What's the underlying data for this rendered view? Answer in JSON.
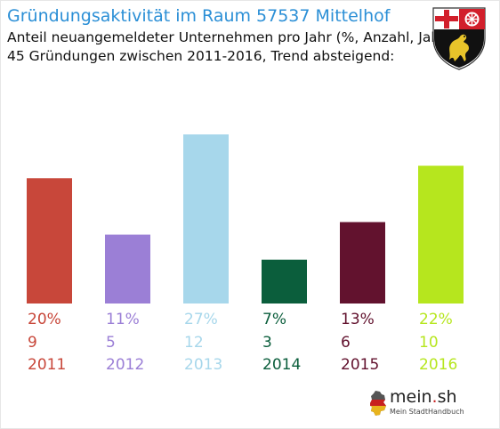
{
  "header": {
    "title": "Gründungsaktivität im Raum 57537 Mittelhof",
    "subtitle_line1": "Anteil neuangemeldeter Unternehmen pro Jahr (%, Anzahl, Jahr)",
    "subtitle_line2": "45 Gründungen zwischen 2011-2016, Trend absteigend:"
  },
  "crest": {
    "icon": "rhineland-palatinate-coat-of-arms-icon"
  },
  "brand": {
    "name_main": "mein",
    "name_dot": ".",
    "name_tld": "sh",
    "tagline": "Mein StadtHandbuch",
    "icon": "germany-map-icon"
  },
  "chart_data": {
    "type": "bar",
    "categories": [
      "2011",
      "2012",
      "2013",
      "2014",
      "2015",
      "2016"
    ],
    "series": [
      {
        "values": [
          20,
          11,
          27,
          7,
          13,
          22
        ]
      }
    ],
    "percent_labels": [
      "20%",
      "11%",
      "27%",
      "7%",
      "13%",
      "22%"
    ],
    "counts": [
      9,
      5,
      12,
      3,
      6,
      10
    ],
    "count_labels": [
      "9",
      "5",
      "12",
      "3",
      "6",
      "10"
    ],
    "colors": [
      "#c8473a",
      "#9b7fd6",
      "#a7d7eb",
      "#0b5e3c",
      "#62122e",
      "#b6e61e"
    ],
    "ylim": [
      0,
      27
    ],
    "grid": false,
    "legend": "none"
  }
}
